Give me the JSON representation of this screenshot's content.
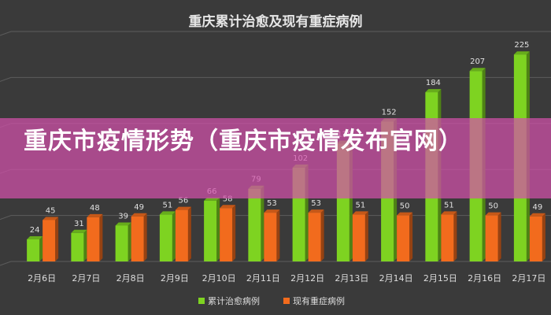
{
  "chart_data": {
    "type": "bar",
    "title": "重庆累计治愈及现有重症病例",
    "categories": [
      "2月6日",
      "2月7日",
      "2月8日",
      "2月9日",
      "2月10日",
      "2月11日",
      "2月12日",
      "2月13日",
      "2月14日",
      "2月15日",
      "2月16日",
      "2月17日"
    ],
    "series": [
      {
        "name": "累计治愈病例",
        "values": [
          24,
          31,
          39,
          51,
          66,
          79,
          102,
          128,
          152,
          184,
          207,
          225
        ],
        "color": "#7ed321"
      },
      {
        "name": "现有重症病例",
        "values": [
          45,
          48,
          49,
          56,
          58,
          53,
          53,
          51,
          50,
          51,
          50,
          49
        ],
        "color": "#f26b1d"
      }
    ],
    "ylim": [
      0,
      250
    ],
    "grid": true,
    "legend": "bottom"
  },
  "overlay": {
    "banner_text": "重庆市疫情形势（重庆市疫情发布官网）"
  }
}
